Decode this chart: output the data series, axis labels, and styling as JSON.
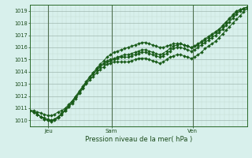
{
  "title": "Pression niveau de la mer( hPa )",
  "bg_color": "#d8f0ec",
  "grid_major_color": "#a0b8b0",
  "grid_minor_color": "#c0d8d0",
  "line_color": "#1a5c1a",
  "marker_color": "#1a5c1a",
  "axis_color": "#2a6a2a",
  "text_color": "#1a4a1a",
  "vline_color": "#507050",
  "ylim": [
    1009.5,
    1019.5
  ],
  "xlim": [
    0,
    96
  ],
  "yticks": [
    1010,
    1011,
    1012,
    1013,
    1014,
    1015,
    1016,
    1017,
    1018,
    1019
  ],
  "xtick_labels": [
    "Jeu",
    "Sam",
    "Ven"
  ],
  "xtick_pos": [
    8,
    36,
    72
  ],
  "vline_pos": [
    8,
    36,
    72
  ],
  "series": [
    [
      1010.8,
      1010.8,
      1010.7,
      1010.6,
      1010.5,
      1010.4,
      1010.4,
      1010.5,
      1010.7,
      1010.8,
      1011.0,
      1011.3,
      1011.6,
      1011.9,
      1012.3,
      1012.7,
      1013.1,
      1013.5,
      1013.9,
      1014.3,
      1014.6,
      1014.9,
      1015.2,
      1015.4,
      1015.6,
      1015.7,
      1015.8,
      1015.9,
      1016.0,
      1016.1,
      1016.2,
      1016.3,
      1016.4,
      1016.4,
      1016.3,
      1016.2,
      1016.1,
      1016.0,
      1016.0,
      1016.1,
      1016.2,
      1016.3,
      1016.3,
      1016.3,
      1016.2,
      1016.1,
      1016.0,
      1016.1,
      1016.2,
      1016.4,
      1016.6,
      1016.8,
      1017.0,
      1017.2,
      1017.4,
      1017.7,
      1018.0,
      1018.3,
      1018.6,
      1018.9,
      1019.1,
      1019.2,
      1019.3
    ],
    [
      1010.8,
      1010.7,
      1010.5,
      1010.3,
      1010.1,
      1010.0,
      1010.0,
      1010.1,
      1010.3,
      1010.5,
      1010.8,
      1011.1,
      1011.4,
      1011.8,
      1012.2,
      1012.6,
      1013.0,
      1013.3,
      1013.6,
      1013.9,
      1014.2,
      1014.4,
      1014.6,
      1014.7,
      1014.8,
      1014.8,
      1014.8,
      1014.8,
      1014.8,
      1014.9,
      1015.0,
      1015.1,
      1015.1,
      1015.1,
      1015.0,
      1014.9,
      1014.8,
      1014.7,
      1014.8,
      1015.0,
      1015.2,
      1015.3,
      1015.4,
      1015.4,
      1015.3,
      1015.2,
      1015.1,
      1015.2,
      1015.4,
      1015.6,
      1015.9,
      1016.1,
      1016.3,
      1016.5,
      1016.8,
      1017.1,
      1017.4,
      1017.7,
      1018.0,
      1018.3,
      1018.6,
      1018.9,
      1019.2
    ],
    [
      1010.8,
      1010.7,
      1010.5,
      1010.3,
      1010.1,
      1010.0,
      1009.9,
      1010.0,
      1010.2,
      1010.5,
      1010.8,
      1011.1,
      1011.5,
      1011.9,
      1012.3,
      1012.7,
      1013.1,
      1013.5,
      1013.8,
      1014.1,
      1014.4,
      1014.6,
      1014.8,
      1014.9,
      1015.0,
      1015.1,
      1015.2,
      1015.2,
      1015.2,
      1015.3,
      1015.4,
      1015.5,
      1015.6,
      1015.6,
      1015.5,
      1015.4,
      1015.3,
      1015.2,
      1015.3,
      1015.5,
      1015.7,
      1015.9,
      1016.0,
      1016.0,
      1015.9,
      1015.8,
      1015.7,
      1015.8,
      1016.0,
      1016.2,
      1016.4,
      1016.6,
      1016.8,
      1017.0,
      1017.2,
      1017.5,
      1017.8,
      1018.1,
      1018.4,
      1018.7,
      1019.0,
      1019.2,
      1019.3
    ],
    [
      1010.8,
      1010.7,
      1010.5,
      1010.3,
      1010.2,
      1010.1,
      1010.0,
      1010.1,
      1010.3,
      1010.6,
      1010.9,
      1011.2,
      1011.6,
      1012.0,
      1012.4,
      1012.8,
      1013.2,
      1013.6,
      1013.9,
      1014.2,
      1014.5,
      1014.7,
      1014.9,
      1015.0,
      1015.1,
      1015.2,
      1015.3,
      1015.4,
      1015.4,
      1015.5,
      1015.6,
      1015.7,
      1015.8,
      1015.8,
      1015.7,
      1015.6,
      1015.5,
      1015.4,
      1015.5,
      1015.7,
      1015.9,
      1016.1,
      1016.2,
      1016.3,
      1016.2,
      1016.1,
      1016.0,
      1016.1,
      1016.3,
      1016.5,
      1016.7,
      1016.9,
      1017.1,
      1017.3,
      1017.5,
      1017.8,
      1018.1,
      1018.4,
      1018.7,
      1019.0,
      1019.1,
      1019.2,
      1019.3
    ]
  ],
  "marker_size": 2.0,
  "line_width": 0.7
}
